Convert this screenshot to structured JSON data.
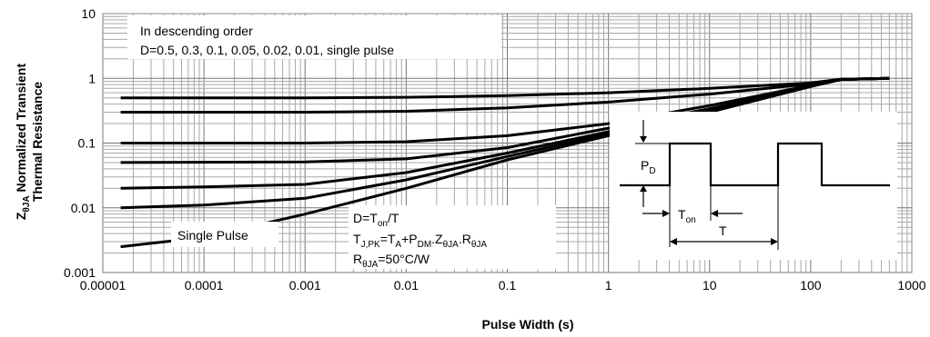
{
  "chart_data": {
    "type": "line",
    "xlabel": "Pulse Width (s)",
    "ylabel_line1": "Z",
    "ylabel_sub": "θJA",
    "ylabel_rest": " Normalized Transient",
    "ylabel_line2": "Thermal Resistance",
    "x_scale": "log",
    "y_scale": "log",
    "xlim": [
      1e-05,
      1000
    ],
    "ylim": [
      0.001,
      10
    ],
    "grid": true,
    "x_ticks": [
      "0.00001",
      "0.0001",
      "0.001",
      "0.01",
      "0.1",
      "1",
      "10",
      "100",
      "1000"
    ],
    "y_ticks": [
      "0.001",
      "0.01",
      "0.1",
      "1",
      "10"
    ],
    "legend_text_line1": "In descending order",
    "legend_text_line2": "D=0.5, 0.3, 0.1, 0.05, 0.02, 0.01, single pulse",
    "series_label": "Single Pulse",
    "series": [
      {
        "name": "D=0.5",
        "x": [
          1.5e-05,
          0.001,
          0.01,
          0.1,
          1,
          10,
          100,
          200,
          600
        ],
        "y": [
          0.5,
          0.5,
          0.51,
          0.54,
          0.6,
          0.7,
          0.85,
          0.97,
          1.0
        ]
      },
      {
        "name": "D=0.3",
        "x": [
          1.5e-05,
          0.001,
          0.01,
          0.1,
          1,
          10,
          100,
          200,
          600
        ],
        "y": [
          0.3,
          0.3,
          0.31,
          0.35,
          0.43,
          0.57,
          0.82,
          0.97,
          1.0
        ]
      },
      {
        "name": "D=0.1",
        "x": [
          1.5e-05,
          0.001,
          0.01,
          0.1,
          1,
          10,
          100,
          200,
          600
        ],
        "y": [
          0.1,
          0.1,
          0.105,
          0.13,
          0.2,
          0.38,
          0.78,
          0.96,
          1.0
        ]
      },
      {
        "name": "D=0.05",
        "x": [
          1.5e-05,
          0.001,
          0.01,
          0.1,
          1,
          10,
          100,
          200,
          600
        ],
        "y": [
          0.05,
          0.051,
          0.057,
          0.085,
          0.17,
          0.34,
          0.77,
          0.96,
          1.0
        ]
      },
      {
        "name": "D=0.02",
        "x": [
          1.5e-05,
          0.0001,
          0.001,
          0.01,
          0.1,
          1,
          10,
          100,
          200,
          600
        ],
        "y": [
          0.02,
          0.021,
          0.023,
          0.035,
          0.07,
          0.15,
          0.32,
          0.76,
          0.96,
          1.0
        ]
      },
      {
        "name": "D=0.01",
        "x": [
          1.5e-05,
          0.0001,
          0.001,
          0.01,
          0.1,
          1,
          10,
          100,
          200,
          600
        ],
        "y": [
          0.01,
          0.011,
          0.014,
          0.027,
          0.062,
          0.14,
          0.31,
          0.75,
          0.96,
          1.0
        ]
      },
      {
        "name": "single pulse",
        "x": [
          1.5e-05,
          0.0001,
          0.001,
          0.01,
          0.1,
          1,
          10,
          100,
          200,
          600
        ],
        "y": [
          0.0025,
          0.0035,
          0.008,
          0.02,
          0.055,
          0.13,
          0.3,
          0.75,
          0.96,
          1.0
        ]
      }
    ]
  },
  "equations": {
    "duty": {
      "base": "D=T",
      "sub": "on",
      "rest": "/T"
    },
    "tjpk": {
      "a": "T",
      "a_sub": "J,PK",
      "b": "=T",
      "b_sub": "A",
      "c": "+P",
      "c_sub": "DM",
      "d": ".Z",
      "d_sub": "θJA",
      "e": ".R",
      "e_sub": "θJA"
    },
    "rtheta": {
      "a": "R",
      "a_sub": "θJA",
      "b": "=50°C/W"
    }
  },
  "waveform": {
    "pd_label": "P",
    "pd_sub": "D",
    "ton_label": "T",
    "ton_sub": "on",
    "t_label": "T"
  }
}
